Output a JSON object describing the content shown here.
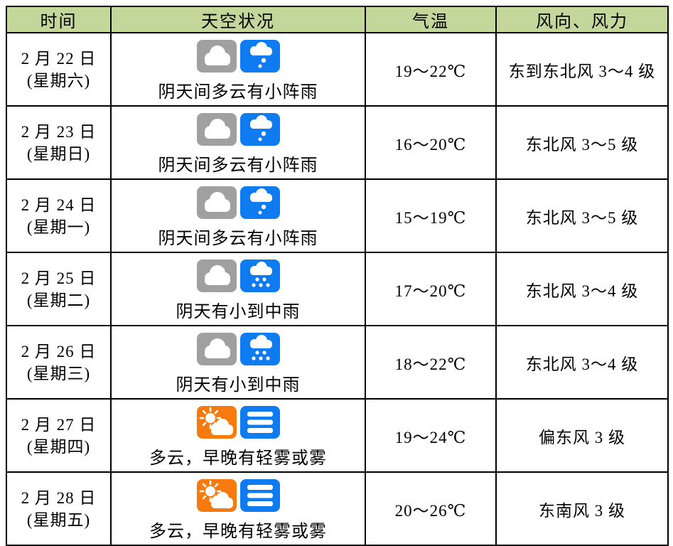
{
  "table": {
    "headers": [
      "时间",
      "天空状况",
      "气温",
      "风向、风力"
    ],
    "rows": [
      {
        "date": "2 月 22 日",
        "weekday": "(星期六)",
        "icons": [
          "overcast-icon",
          "light-shower-icon"
        ],
        "sky_text": "阴天间多云有小阵雨",
        "temperature": "19～22℃",
        "wind": "东到东北风 3～4 级"
      },
      {
        "date": "2 月 23 日",
        "weekday": "(星期日)",
        "icons": [
          "overcast-icon",
          "light-shower-icon"
        ],
        "sky_text": "阴天间多云有小阵雨",
        "temperature": "16～20℃",
        "wind": "东北风 3～5 级"
      },
      {
        "date": "2 月 24 日",
        "weekday": "(星期一)",
        "icons": [
          "overcast-icon",
          "light-shower-icon"
        ],
        "sky_text": "阴天间多云有小阵雨",
        "temperature": "15～19℃",
        "wind": "东北风 3～5 级"
      },
      {
        "date": "2 月 25 日",
        "weekday": "(星期二)",
        "icons": [
          "overcast-icon",
          "moderate-rain-icon"
        ],
        "sky_text": "阴天有小到中雨",
        "temperature": "17～20℃",
        "wind": "东北风 3～4 级"
      },
      {
        "date": "2 月 26 日",
        "weekday": "(星期三)",
        "icons": [
          "overcast-icon",
          "moderate-rain-icon"
        ],
        "sky_text": "阴天有小到中雨",
        "temperature": "18～22℃",
        "wind": "东北风 3～4 级"
      },
      {
        "date": "2 月 27 日",
        "weekday": "(星期四)",
        "icons": [
          "sun-cloud-icon",
          "fog-icon"
        ],
        "sky_text": "多云，早晚有轻雾或雾",
        "temperature": "19～24℃",
        "wind": "偏东风 3 级"
      },
      {
        "date": "2 月 28 日",
        "weekday": "(星期五)",
        "icons": [
          "sun-cloud-icon",
          "fog-icon"
        ],
        "sky_text": "多云，早晚有轻雾或雾",
        "temperature": "20～26℃",
        "wind": "东南风 3 级"
      }
    ]
  },
  "colors": {
    "header_bg": "#c4d79b",
    "border": "#000000",
    "icon_gray": "#a0a0a0",
    "icon_blue": "#0f7bf0",
    "icon_orange": "#f67a0d"
  }
}
